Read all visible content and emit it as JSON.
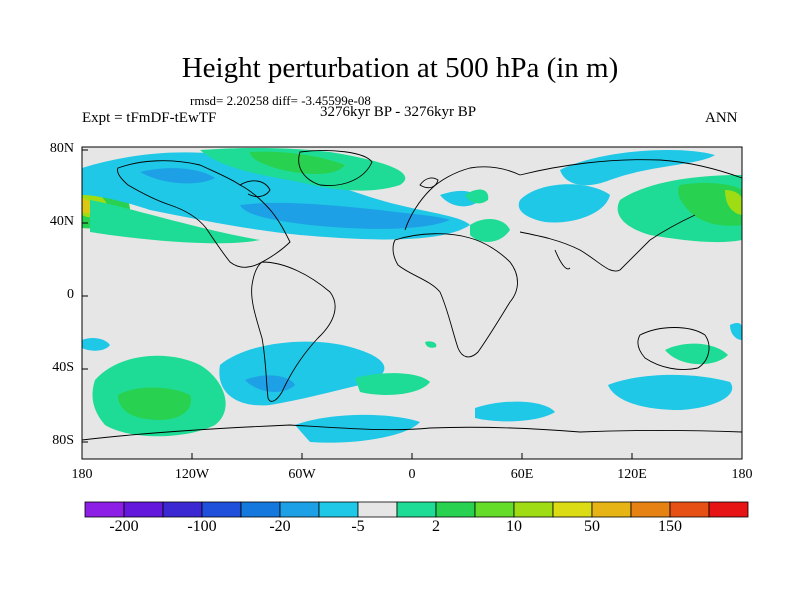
{
  "header": {
    "title": "Height perturbation at 500 hPa (in m)",
    "stats": "rmsd= 2.20258 diff= -3.45599e-08",
    "experiment": "Expt = tFmDF-tEwTF",
    "period": "3276kyr BP - 3276kyr BP",
    "season": "ANN"
  },
  "axes": {
    "lat_labels": [
      "80N",
      "40N",
      "0",
      "40S",
      "80S"
    ],
    "lon_labels": [
      "180",
      "120W",
      "60W",
      "0",
      "60E",
      "120E",
      "180"
    ]
  },
  "colorbar": {
    "labels": [
      "-200",
      "-100",
      "-20",
      "-5",
      "2",
      "10",
      "50",
      "150"
    ],
    "colors": [
      "#8c1ee6",
      "#6418dc",
      "#3c28d2",
      "#1e50dc",
      "#1478dc",
      "#1ea0e6",
      "#1ec8e6",
      "#e6e6e6",
      "#1edc96",
      "#28d250",
      "#64dc28",
      "#a0dc14",
      "#dcdc14",
      "#e6b414",
      "#e68214",
      "#e65014",
      "#e61414"
    ]
  },
  "colors": {
    "background_field": "#e6e6e6",
    "coast": "#000000",
    "negative_light": "#1ec8e6",
    "negative_mid": "#1ea0e6",
    "negative_strong": "#1478dc",
    "positive_light": "#1edc96",
    "positive_mid": "#28d250",
    "positive_strong": "#a0dc14",
    "positive_peak": "#dcc814"
  }
}
